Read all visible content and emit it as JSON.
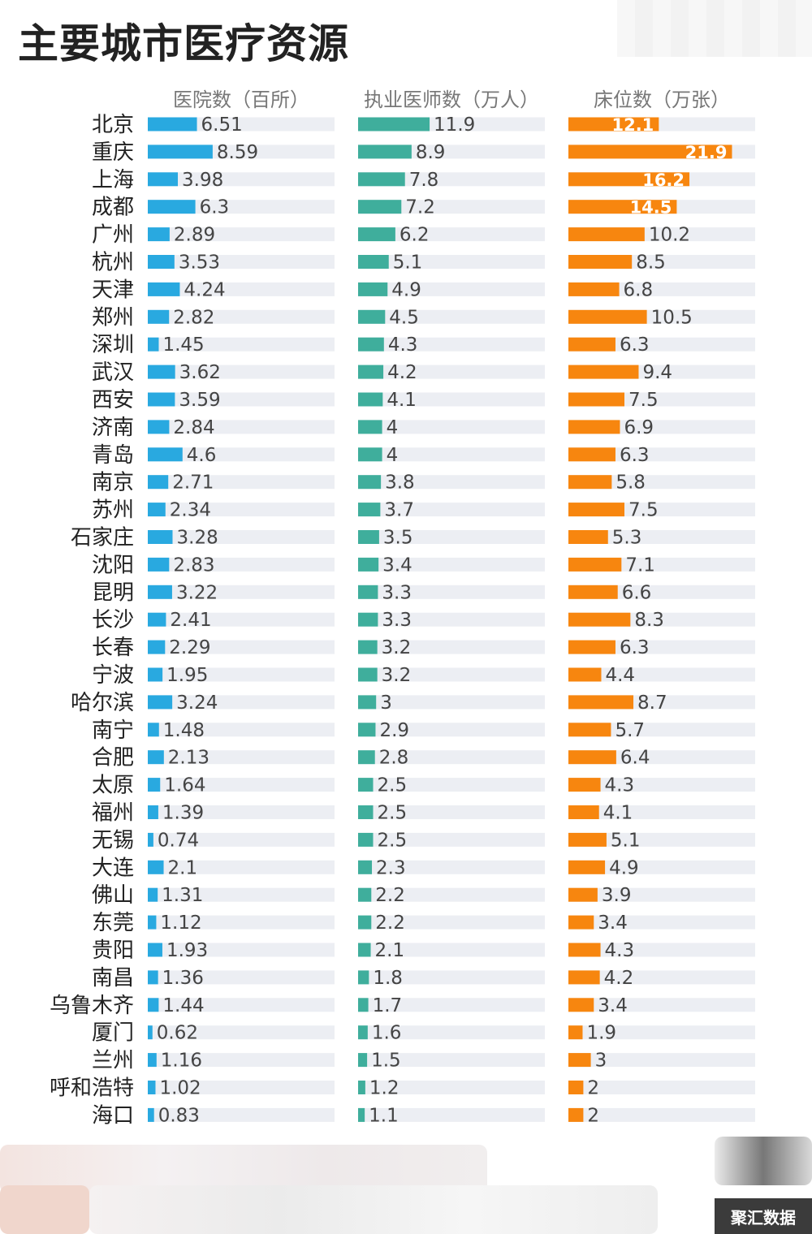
{
  "title": "主要城市医疗资源",
  "brand_label": "聚汇数据",
  "colors": {
    "hospitals": "#29a9e0",
    "doctors": "#3fae9c",
    "beds": "#f7860f",
    "track": "#eceef3"
  },
  "chart_data": {
    "type": "bar",
    "orientation": "horizontal",
    "categories": [
      "北京",
      "重庆",
      "上海",
      "成都",
      "广州",
      "杭州",
      "天津",
      "郑州",
      "深圳",
      "武汉",
      "西安",
      "济南",
      "青岛",
      "南京",
      "苏州",
      "石家庄",
      "沈阳",
      "昆明",
      "长沙",
      "长春",
      "宁波",
      "哈尔滨",
      "南宁",
      "合肥",
      "太原",
      "福州",
      "无锡",
      "大连",
      "佛山",
      "东莞",
      "贵阳",
      "南昌",
      "乌鲁木齐",
      "厦门",
      "兰州",
      "呼和浩特",
      "海口"
    ],
    "series": [
      {
        "name": "医院数（百所）",
        "values": [
          "6.51",
          "8.59",
          "3.98",
          "6.3",
          "2.89",
          "3.53",
          "4.24",
          "2.82",
          "1.45",
          "3.62",
          "3.59",
          "2.84",
          "4.6",
          "2.71",
          "2.34",
          "3.28",
          "2.83",
          "3.22",
          "2.41",
          "2.29",
          "1.95",
          "3.24",
          "1.48",
          "2.13",
          "1.64",
          "1.39",
          "0.74",
          "2.1",
          "1.31",
          "1.12",
          "1.93",
          "1.36",
          "1.44",
          "0.62",
          "1.16",
          "1.02",
          "0.83"
        ]
      },
      {
        "name": "执业医师数（万人）",
        "values": [
          "11.9",
          "8.9",
          "7.8",
          "7.2",
          "6.2",
          "5.1",
          "4.9",
          "4.5",
          "4.3",
          "4.2",
          "4.1",
          "4",
          "4",
          "3.8",
          "3.7",
          "3.5",
          "3.4",
          "3.3",
          "3.3",
          "3.2",
          "3.2",
          "3",
          "2.9",
          "2.8",
          "2.5",
          "2.5",
          "2.5",
          "2.3",
          "2.2",
          "2.2",
          "2.1",
          "1.8",
          "1.7",
          "1.6",
          "1.5",
          "1.2",
          "1.1"
        ]
      },
      {
        "name": "床位数（万张）",
        "values": [
          "12.1",
          "21.9",
          "16.2",
          "14.5",
          "10.2",
          "8.5",
          "6.8",
          "10.5",
          "6.3",
          "9.4",
          "7.5",
          "6.9",
          "6.3",
          "5.8",
          "7.5",
          "5.3",
          "7.1",
          "6.6",
          "8.3",
          "6.3",
          "4.4",
          "8.7",
          "5.7",
          "6.4",
          "4.3",
          "4.1",
          "5.1",
          "4.9",
          "3.9",
          "3.4",
          "4.3",
          "4.2",
          "3.4",
          "1.9",
          "3",
          "2",
          "2"
        ]
      }
    ]
  }
}
